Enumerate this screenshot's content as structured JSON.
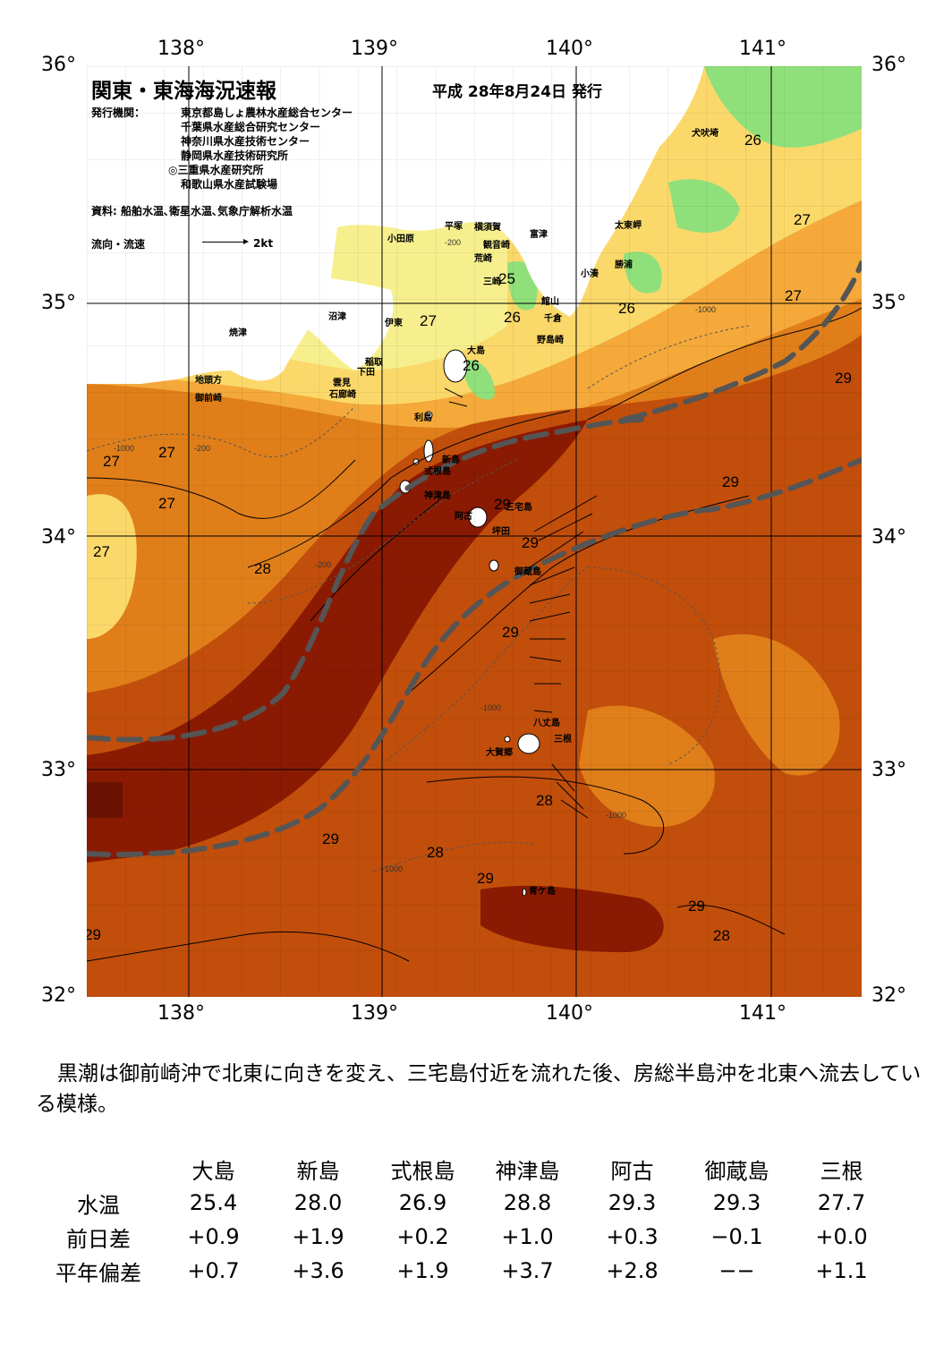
{
  "map": {
    "title": "関東・東海海況速報",
    "issue_date": "平成 28年8月24日 発行",
    "publisher_label": "発行機関：",
    "publishers": [
      "東京都島しょ農林水産総合センター",
      "千葉県水産総合研究センター",
      "神奈川県水産技術センター",
      "静岡県水産技術研究所",
      "◎三重県水産研究所",
      "和歌山県水産試験場"
    ],
    "source": "資料: 船舶水温､衛星水温､気象庁解析水温",
    "flow_legend_label": "流向・流速",
    "flow_legend_speed": "2kt",
    "longitude_labels": [
      "138°",
      "139°",
      "140°",
      "141°"
    ],
    "latitude_labels": [
      "36°",
      "35°",
      "34°",
      "33°",
      "32°"
    ],
    "place_names": [
      "犬吠埼",
      "太東岬",
      "勝浦",
      "小湊",
      "館山",
      "千倉",
      "野島崎",
      "富津",
      "観音崎",
      "横須賀",
      "荒崎",
      "三崎",
      "平塚",
      "小田原",
      "沼津",
      "伊東",
      "稲取",
      "下田",
      "雲見",
      "石廊崎",
      "焼津",
      "地頭方",
      "御前崎",
      "大島",
      "利島",
      "新島",
      "式根島",
      "神津島",
      "三宅島",
      "阿古",
      "坪田",
      "御蔵島",
      "八丈島",
      "三根",
      "大賀郷",
      "青ケ島"
    ],
    "temperature_labels": [
      "26",
      "27",
      "27",
      "25",
      "26",
      "26",
      "27",
      "26",
      "29",
      "27",
      "27",
      "27",
      "27",
      "28",
      "29",
      "29",
      "29",
      "29",
      "28",
      "29",
      "28",
      "29",
      "29",
      "28",
      "29"
    ],
    "depth_labels": [
      "-1000",
      "-200"
    ],
    "colors": {
      "kuroshio_path": "#555555",
      "very_warm": "#8b1a02",
      "warm": "#c24e0b",
      "mid": "#e07f1a",
      "cool": "#f4a93a",
      "cooler": "#fbd86a",
      "coolest": "#f7ef8e",
      "coastal_green": "#8fe07a",
      "coastal_green_dark": "#5fcf6d"
    }
  },
  "description": "黒潮は御前崎沖で北東に向きを変え、三宅島付近を流れた後、房総半島沖を北東へ流去している模様。",
  "observations": {
    "stations": [
      "大島",
      "新島",
      "式根島",
      "神津島",
      "阿古",
      "御蔵島",
      "三根"
    ],
    "rows": [
      {
        "label": "水温",
        "values": [
          "25.4",
          "28.0",
          "26.9",
          "28.8",
          "29.3",
          "29.3",
          "27.7"
        ]
      },
      {
        "label": "前日差",
        "values": [
          "+0.9",
          "+1.9",
          "+0.2",
          "+1.0",
          "+0.3",
          "−0.1",
          "+0.0"
        ]
      },
      {
        "label": "平年偏差",
        "values": [
          "+0.7",
          "+3.6",
          "+1.9",
          "+3.7",
          "+2.8",
          "−−",
          "+1.1"
        ]
      }
    ]
  }
}
